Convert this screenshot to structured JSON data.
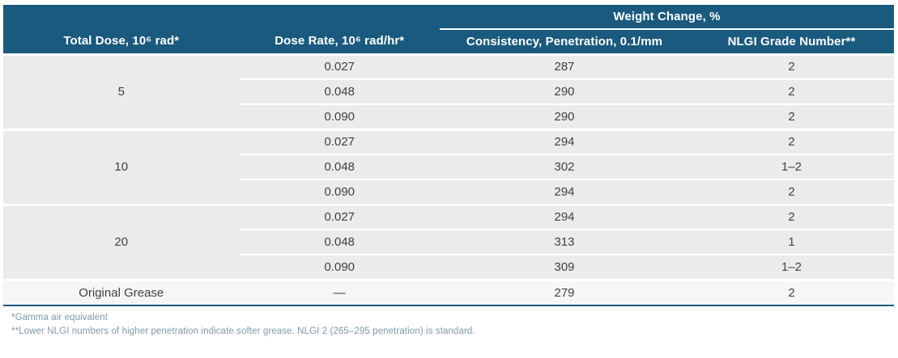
{
  "table": {
    "spanning_header": "Weight Change, %",
    "columns": [
      "Total Dose, 10⁶ rad*",
      "Dose Rate, 10⁶ rad/hr*",
      "Consistency, Penetration, 0.1/mm",
      "NLGI Grade Number**"
    ],
    "groups": [
      {
        "dose": "5",
        "rows": [
          [
            "0.027",
            "287",
            "2"
          ],
          [
            "0.048",
            "290",
            "2"
          ],
          [
            "0.090",
            "290",
            "2"
          ]
        ]
      },
      {
        "dose": "10",
        "rows": [
          [
            "0.027",
            "294",
            "2"
          ],
          [
            "0.048",
            "302",
            "1–2"
          ],
          [
            "0.090",
            "294",
            "2"
          ]
        ]
      },
      {
        "dose": "20",
        "rows": [
          [
            "0.027",
            "294",
            "2"
          ],
          [
            "0.048",
            "313",
            "1"
          ],
          [
            "0.090",
            "309",
            "1–2"
          ]
        ]
      }
    ],
    "final_row": [
      "Original Grease",
      "—",
      "279",
      "2"
    ]
  },
  "footnotes": [
    "*Gamma air equivalent",
    "**Lower NLGI numbers of higher penetration indicate softer grease. NLGI 2 (265–295 penetration) is standard."
  ],
  "colors": {
    "header_bg": "#1a5a7e",
    "row_bg": "#e9ebed",
    "final_row_bg": "#f4f6f7",
    "body_text": "#3f4142",
    "footnote_text": "#7d99aa",
    "separator": "#ffffff"
  }
}
